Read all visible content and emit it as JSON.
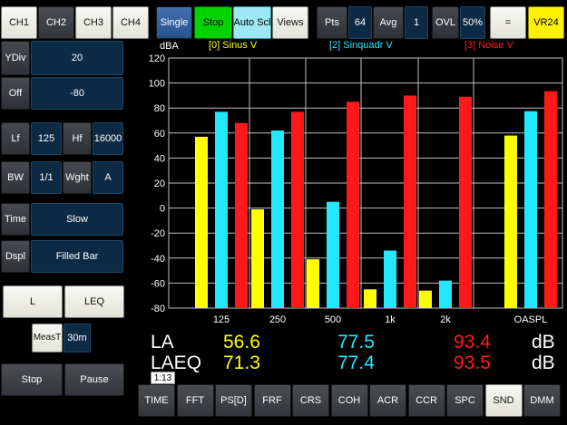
{
  "colors": {
    "ch0": "#ffff00",
    "ch1": "#22e8ff",
    "ch3": "#ff1a1a",
    "grid": "#bfbfbf"
  },
  "top_bar": {
    "channels": [
      "CH1",
      "CH2",
      "CH3",
      "CH4"
    ],
    "single": "Single",
    "stop": "Stop",
    "auto_scale": "Auto Scl",
    "views": "Views",
    "pts_label": "Pts",
    "pts_value": "64",
    "avg_label": "Avg",
    "avg_value": "1",
    "ovl_label": "OVL",
    "ovl_value": "50%",
    "equals": "=",
    "vr": "VR24"
  },
  "left_panel": {
    "ydiv_label": "YDiv",
    "ydiv_value": "20",
    "off_label": "Off",
    "off_value": "-80",
    "lf_label": "Lf",
    "lf_value": "125",
    "hf_label": "Hf",
    "hf_value": "16000",
    "bw_label": "BW",
    "bw_value": "1/1",
    "wght_label": "Wght",
    "wght_value": "A",
    "time_label": "Time",
    "time_value": "Slow",
    "dspl_label": "Dspl",
    "dspl_value": "Filled Bar",
    "l_button": "L",
    "leq_button": "LEQ",
    "meast_label": "MeasT",
    "meast_value": "30m",
    "stop_button": "Stop",
    "pause_button": "Pause",
    "elapsed": "1:13"
  },
  "chart_data": {
    "type": "bar",
    "ylabel": "dBA",
    "ylim": [
      -80,
      120
    ],
    "yticks": [
      -80,
      -60,
      -40,
      -20,
      0,
      20,
      40,
      60,
      80,
      100,
      120
    ],
    "categories": [
      "125",
      "250",
      "500",
      "1k",
      "2k",
      "OASPL"
    ],
    "grid": true,
    "legend_position": "top",
    "series": [
      {
        "name": "[0] Sinus V",
        "values": [
          57,
          -1,
          -41,
          -65,
          -66,
          58
        ]
      },
      {
        "name": "[2] Sinquadr V",
        "values": [
          77,
          62,
          5,
          -34,
          -58,
          77.5
        ]
      },
      {
        "name": "[3] Noise V",
        "values": [
          68,
          77,
          85,
          90,
          89,
          93.5
        ]
      }
    ]
  },
  "readouts": {
    "la_label": "LA",
    "la_values": [
      "56.6",
      "77.5",
      "93.4"
    ],
    "laeq_label": "LAEQ",
    "laeq_values": [
      "71.3",
      "77.4",
      "93.5"
    ],
    "unit": "dB"
  },
  "bottom_tabs": [
    "TIME",
    "FFT",
    "PS[D]",
    "FRF",
    "CRS",
    "COH",
    "ACR",
    "CCR",
    "SPC",
    "SND",
    "DMM"
  ],
  "active_tab": "SND"
}
